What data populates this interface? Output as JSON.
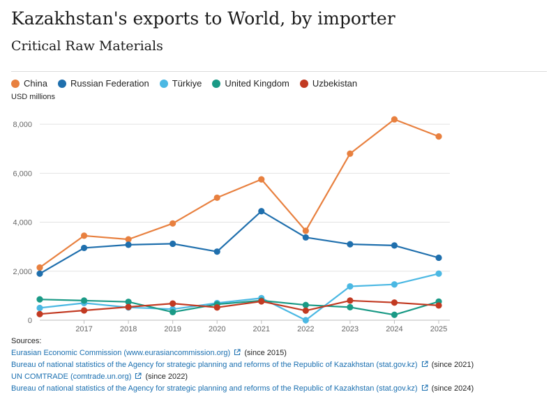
{
  "header": {
    "title": "Kazakhstan's exports to World, by importer",
    "subtitle": "Critical Raw Materials",
    "unit": "USD millions"
  },
  "chart_data": {
    "type": "line",
    "title": "Kazakhstan's exports to World, by importer",
    "subtitle": "Critical Raw Materials",
    "ylabel": "USD millions",
    "xlabel": "",
    "x": [
      2016,
      2017,
      2018,
      2019,
      2020,
      2021,
      2022,
      2023,
      2024,
      2025
    ],
    "x_tick_labels": [
      "2017",
      "2018",
      "2019",
      "2020",
      "2021",
      "2022",
      "2023",
      "2024",
      "2025"
    ],
    "ylim": [
      0,
      8800
    ],
    "y_ticks": [
      0,
      2000,
      4000,
      6000,
      8000
    ],
    "y_tick_labels": [
      "0",
      "2,000",
      "4,000",
      "6,000",
      "8,000"
    ],
    "grid": true,
    "legend_position": "top-left",
    "series": [
      {
        "name": "China",
        "color": "#e8803f",
        "values": [
          2150,
          3450,
          3300,
          3950,
          5000,
          5750,
          3650,
          6800,
          8200,
          7500
        ]
      },
      {
        "name": "Russian Federation",
        "color": "#1f6fad",
        "values": [
          1900,
          2950,
          3080,
          3120,
          2800,
          4450,
          3380,
          3100,
          3050,
          2550
        ]
      },
      {
        "name": "Türkiye",
        "color": "#4bb8e3",
        "values": [
          500,
          700,
          520,
          450,
          700,
          900,
          0,
          1380,
          1460,
          1900
        ]
      },
      {
        "name": "United Kingdom",
        "color": "#1a9a86",
        "values": [
          850,
          800,
          750,
          330,
          650,
          800,
          620,
          530,
          220,
          760
        ]
      },
      {
        "name": "Uzbekistan",
        "color": "#c23a22",
        "values": [
          250,
          400,
          540,
          680,
          520,
          770,
          390,
          800,
          720,
          600
        ]
      }
    ]
  },
  "sources": {
    "title": "Sources:",
    "items": [
      {
        "link": "Eurasian Economic Commission (www.eurasiancommission.org)",
        "note": "(since 2015)"
      },
      {
        "link": "Bureau of national statistics of the Agency for strategic planning and reforms of the Republic of Kazakhstan (stat.gov.kz)",
        "note": "(since 2021)"
      },
      {
        "link": "UN COMTRADE (comtrade.un.org)",
        "note": "(since 2022)"
      },
      {
        "link": "Bureau of national statistics of the Agency for strategic planning and reforms of the Republic of Kazakhstan (stat.gov.kz)",
        "note": "(since 2024)"
      }
    ],
    "link_color": "#1a6fb0",
    "icon": "external-link-icon"
  }
}
